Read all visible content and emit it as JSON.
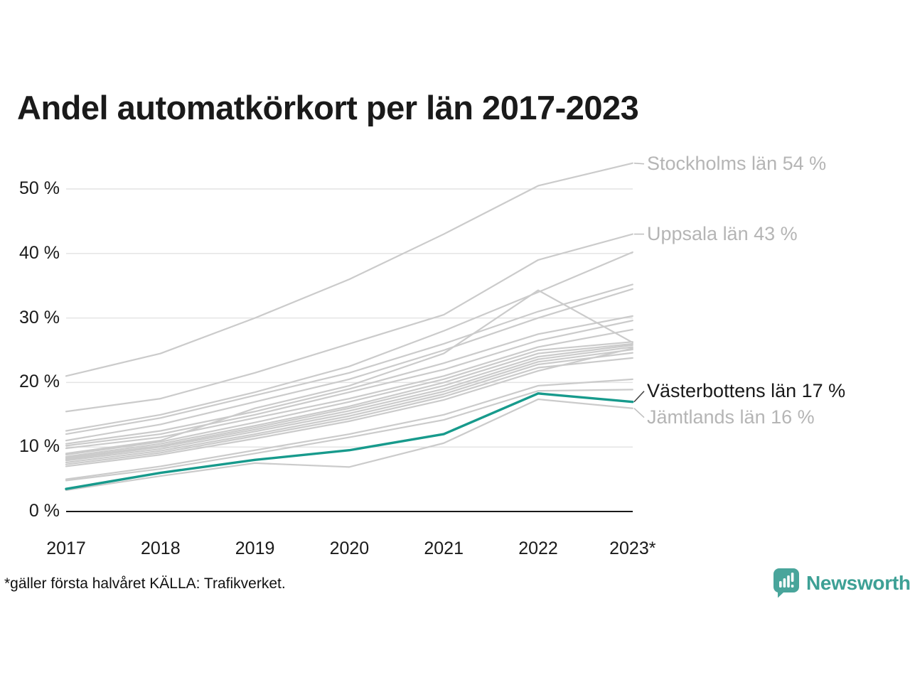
{
  "title": "Andel automatkörkort per län 2017-2023",
  "footnote": "*gäller första halvåret KÄLLA: Trafikverket.",
  "branding": {
    "logo_text": "Newsworthy",
    "logo_icon": "bar-chart-speech-bubble-icon",
    "logo_color": "#3da095"
  },
  "colors": {
    "highlight_line": "#179a8c",
    "gray_line": "#cbcbcb",
    "gray_label": "#b5b5b5",
    "dark_text": "#1a1a1a",
    "gridline": "#e4e4e4",
    "axis": "#1a1a1a",
    "connector_gray": "#c0c0c0",
    "connector_dark": "#444444"
  },
  "chart_data": {
    "type": "line",
    "title": "Andel automatkörkort per län 2017-2023",
    "xlabel": "",
    "ylabel": "",
    "x": [
      2017,
      2018,
      2019,
      2020,
      2021,
      2022,
      2023
    ],
    "x_tick_labels": [
      "2017",
      "2018",
      "2019",
      "2020",
      "2021",
      "2022",
      "2023*"
    ],
    "y_tick_labels": [
      "0 %",
      "10 %",
      "20 %",
      "30 %",
      "40 %",
      "50 %"
    ],
    "y_tick_values": [
      0,
      10,
      20,
      30,
      40,
      50
    ],
    "ylim": [
      0,
      57
    ],
    "grid": "horizontal",
    "legend_position": "right-annotations",
    "series": [
      {
        "name": "Stockholms län",
        "highlight": false,
        "values": [
          21,
          24.5,
          30,
          36,
          43,
          50.5,
          54
        ]
      },
      {
        "name": "Uppsala län",
        "highlight": false,
        "values": [
          15.5,
          17.5,
          21.5,
          26,
          30.5,
          39,
          43
        ]
      },
      {
        "name": "",
        "highlight": false,
        "values": [
          12.5,
          15,
          18.5,
          22.5,
          28,
          34,
          40.2
        ]
      },
      {
        "name": "",
        "highlight": false,
        "values": [
          12,
          14.5,
          18,
          21.5,
          26,
          31,
          35.2
        ]
      },
      {
        "name": "",
        "highlight": false,
        "values": [
          11,
          13.5,
          17,
          20.5,
          25,
          30,
          34.5
        ]
      },
      {
        "name": "",
        "highlight": false,
        "values": [
          10.5,
          12.5,
          15.5,
          19,
          23,
          27.5,
          30.3
        ]
      },
      {
        "name": "",
        "highlight": false,
        "values": [
          10.2,
          12,
          15,
          18.5,
          22,
          26.5,
          29.6
        ]
      },
      {
        "name": "",
        "highlight": false,
        "values": [
          9.8,
          11.5,
          14.5,
          17.5,
          21,
          25.5,
          28.2
        ]
      },
      {
        "name": "",
        "highlight": false,
        "values": [
          9,
          11,
          16,
          19.5,
          24.5,
          34.3,
          26.2
        ]
      },
      {
        "name": "",
        "highlight": false,
        "values": [
          8.8,
          10.8,
          13.8,
          17,
          20.5,
          25,
          26.3
        ]
      },
      {
        "name": "",
        "highlight": false,
        "values": [
          8.5,
          10.5,
          13.3,
          16.3,
          20,
          24.5,
          26
        ]
      },
      {
        "name": "",
        "highlight": false,
        "values": [
          8.3,
          10.2,
          13,
          16,
          19.5,
          24,
          25.8
        ]
      },
      {
        "name": "",
        "highlight": false,
        "values": [
          8.1,
          10,
          12.7,
          15.6,
          19,
          23.6,
          25.5
        ]
      },
      {
        "name": "",
        "highlight": false,
        "values": [
          7.9,
          9.7,
          12.4,
          15.2,
          18.6,
          23.2,
          25.1
        ]
      },
      {
        "name": "",
        "highlight": false,
        "values": [
          7.6,
          9.4,
          12,
          14.8,
          18.2,
          22.8,
          24.6
        ]
      },
      {
        "name": "",
        "highlight": false,
        "values": [
          7.3,
          9.1,
          11.7,
          14.4,
          17.8,
          22.3,
          23.8
        ]
      },
      {
        "name": "",
        "highlight": false,
        "values": [
          7,
          8.8,
          11.3,
          14,
          17.3,
          21.8,
          25.3
        ]
      },
      {
        "name": "",
        "highlight": false,
        "values": [
          5,
          7,
          9.5,
          12,
          15,
          19.5,
          20.5
        ]
      },
      {
        "name": "",
        "highlight": false,
        "values": [
          4.8,
          6.6,
          9,
          11.5,
          14.2,
          18.7,
          18.9
        ]
      },
      {
        "name": "Jämtlands län",
        "highlight": false,
        "values": [
          3.3,
          5.5,
          7.5,
          6.9,
          10.6,
          17.4,
          16
        ]
      },
      {
        "name": "Västerbottens län",
        "highlight": true,
        "values": [
          3.5,
          6,
          8,
          9.5,
          12,
          18.3,
          17
        ]
      }
    ],
    "annotations": [
      {
        "series": "Stockholms län",
        "text": "Stockholms län 54 %",
        "emphasis": false
      },
      {
        "series": "Uppsala län",
        "text": "Uppsala län 43 %",
        "emphasis": false
      },
      {
        "series": "Västerbottens län",
        "text": "Västerbottens län 17 %",
        "emphasis": true
      },
      {
        "series": "Jämtlands län",
        "text": "Jämtlands län 16 %",
        "emphasis": false
      }
    ]
  }
}
